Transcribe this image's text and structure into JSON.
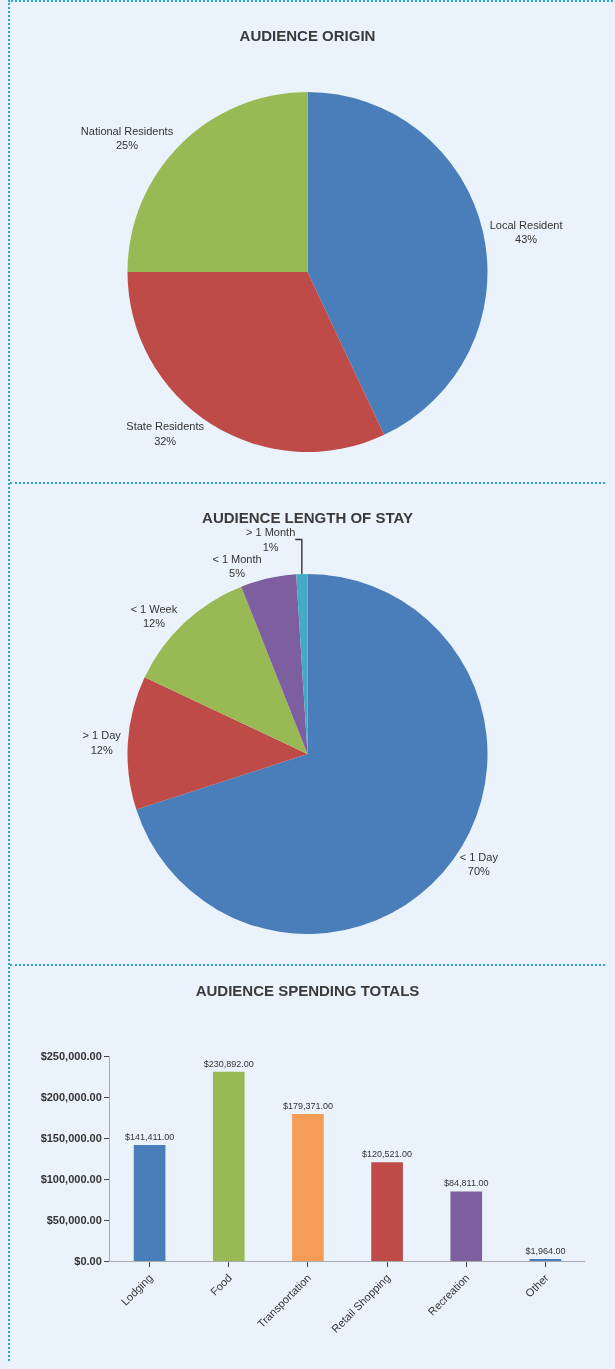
{
  "chart_data": [
    {
      "type": "pie",
      "title": "AUDIENCE ORIGIN",
      "categories": [
        "Local Resident",
        "State Residents",
        "National Residents"
      ],
      "values": [
        43,
        32,
        25
      ],
      "value_labels": [
        "43%",
        "32%",
        "25%"
      ],
      "colors": [
        "#4a7ebb",
        "#be4b48",
        "#98b954"
      ],
      "legend": false
    },
    {
      "type": "pie",
      "title": "AUDIENCE LENGTH OF STAY",
      "categories": [
        "< 1 Day",
        "> 1 Day",
        "< 1 Week",
        "< 1 Month",
        "> 1 Month"
      ],
      "values": [
        70,
        12,
        12,
        5,
        1
      ],
      "value_labels": [
        "70%",
        "12%",
        "12%",
        "5%",
        "1%"
      ],
      "colors": [
        "#4a7ebb",
        "#be4b48",
        "#98b954",
        "#7d5fa0",
        "#46aac5"
      ],
      "legend": false
    },
    {
      "type": "bar",
      "title": "AUDIENCE SPENDING TOTALS",
      "categories": [
        "Lodging",
        "Food",
        "Transportation",
        "Retail Shopping",
        "Recreation",
        "Other"
      ],
      "values": [
        141411,
        230892,
        179371,
        120521,
        84811,
        1964
      ],
      "value_labels": [
        "$141,411.00",
        "$230,892.00",
        "$179,371.00",
        "$120,521.00",
        "$84,811.00",
        "$1,964.00"
      ],
      "colors": [
        "#4a7ebb",
        "#98b954",
        "#f59d56",
        "#be4b48",
        "#7d5fa0",
        "#4a7ebb"
      ],
      "ylim": [
        0,
        250000
      ],
      "yticks": [
        {
          "value": 0,
          "label": "$0.00"
        },
        {
          "value": 50000,
          "label": "$50,000.00"
        },
        {
          "value": 100000,
          "label": "$100,000.00"
        },
        {
          "value": 150000,
          "label": "$150,000.00"
        },
        {
          "value": 200000,
          "label": "$200,000.00"
        },
        {
          "value": 250000,
          "label": "$250,000.00"
        }
      ],
      "grid": false,
      "legend": false
    }
  ]
}
